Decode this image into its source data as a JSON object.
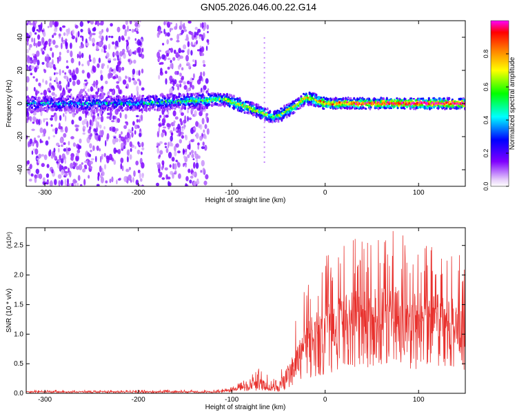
{
  "title": "GN05.2026.046.00.22.G14",
  "chart_data": [
    {
      "type": "heatmap",
      "name": "spectrogram",
      "xlabel": "Height of straight line (km)",
      "ylabel": "Frequency (Hz)",
      "xlim": [
        -320,
        150
      ],
      "ylim": [
        -50,
        50
      ],
      "x_ticks": [
        -300,
        -200,
        -100,
        0,
        100
      ],
      "y_ticks": [
        -40,
        -20,
        0,
        20,
        40
      ],
      "colorbar": {
        "label": "Normalized spectral amplitude",
        "range": [
          0,
          1
        ],
        "ticks": [
          "0.0",
          "0.2",
          "0.4",
          "0.6",
          "0.8"
        ],
        "colormap": [
          "#ffffff",
          "#7f00ff",
          "#0000ff",
          "#00ffff",
          "#00ff00",
          "#ffff00",
          "#ff8000",
          "#ff0000",
          "#ff00ff"
        ]
      },
      "ridge": {
        "x": [
          -320,
          -200,
          -125,
          -110,
          -95,
          -80,
          -70,
          -62,
          -55,
          -48,
          -40,
          -30,
          -22,
          -15,
          0,
          50,
          100,
          150
        ],
        "freq": [
          0,
          0,
          2,
          3,
          0,
          -3,
          -5,
          -7,
          -8,
          -7,
          -4,
          -1,
          3,
          3,
          0,
          0,
          0,
          0
        ],
        "amplitude": [
          0.25,
          0.3,
          0.45,
          0.5,
          0.55,
          0.6,
          0.55,
          0.5,
          0.45,
          0.5,
          0.55,
          0.6,
          0.65,
          0.6,
          0.7,
          0.85,
          0.9,
          0.9
        ]
      },
      "noise_region": [
        -320,
        -125
      ],
      "grid": false
    },
    {
      "type": "line",
      "name": "snr",
      "xlabel": "Height of straight line (km)",
      "ylabel": "SNR (10 * v/v)",
      "y_multiplier": "(x10⁴)",
      "xlim": [
        -320,
        150
      ],
      "ylim": [
        0,
        2.8
      ],
      "x_ticks": [
        -300,
        -200,
        -100,
        0,
        100
      ],
      "y_ticks": [
        "0.0",
        "0.5",
        "1.0",
        "1.5",
        "2.0",
        "2.5"
      ],
      "color": "#e8312d",
      "envelope": {
        "x": [
          -320,
          -120,
          -110,
          -100,
          -90,
          -80,
          -70,
          -60,
          -50,
          -40,
          -30,
          -20,
          -10,
          0,
          10,
          20,
          30,
          40,
          50,
          60,
          70,
          80,
          90,
          100,
          110,
          120,
          130,
          140,
          150
        ],
        "base": [
          0.02,
          0.02,
          0.03,
          0.05,
          0.08,
          0.1,
          0.12,
          0.08,
          0.06,
          0.2,
          0.45,
          0.6,
          0.7,
          0.8,
          0.9,
          1.0,
          1.05,
          1.1,
          1.1,
          1.1,
          1.05,
          1.1,
          1.05,
          1.0,
          1.05,
          1.1,
          1.0,
          0.95,
          0.95
        ],
        "peak": [
          0.05,
          0.06,
          0.08,
          0.12,
          0.2,
          0.3,
          0.45,
          0.3,
          0.25,
          0.8,
          1.4,
          2.0,
          2.2,
          2.35,
          2.4,
          2.5,
          2.6,
          2.7,
          2.65,
          2.6,
          2.75,
          2.8,
          2.6,
          2.55,
          2.5,
          2.45,
          2.3,
          2.5,
          2.3
        ]
      },
      "grid": false
    }
  ]
}
